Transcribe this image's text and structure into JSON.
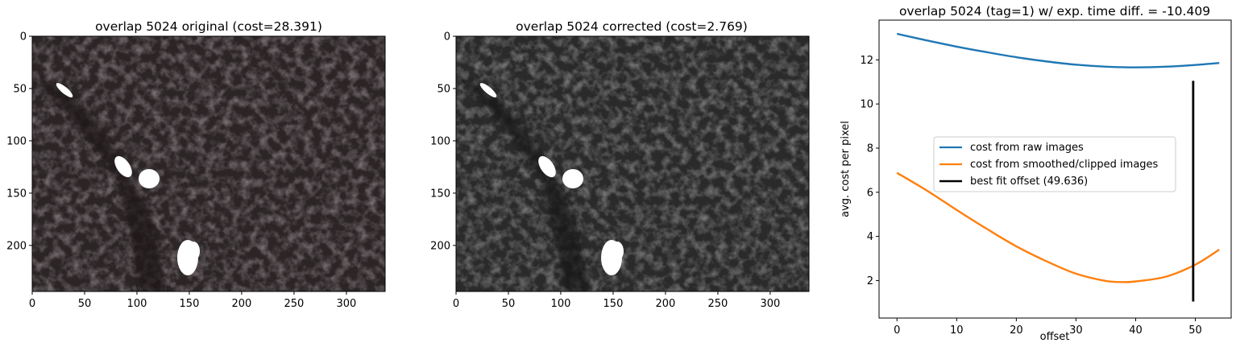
{
  "colors": {
    "raw": "#1f77b4",
    "smoothed": "#ff7f0e",
    "best_fit": "#000000",
    "image_bg": "#2b2526"
  },
  "chart_data": [
    {
      "type": "image",
      "title": "overlap 5024 original (cost=28.391)",
      "xticks": [
        "0",
        "50",
        "100",
        "150",
        "200",
        "250",
        "300"
      ],
      "yticks": [
        "0",
        "50",
        "100",
        "150",
        "200"
      ],
      "xlim": [
        0,
        337
      ],
      "ylim": [
        244,
        0
      ],
      "colormap": "pinkish-gray"
    },
    {
      "type": "image",
      "title": "overlap 5024 corrected (cost=2.769)",
      "xticks": [
        "0",
        "50",
        "100",
        "150",
        "200",
        "250",
        "300"
      ],
      "yticks": [
        "0",
        "50",
        "100",
        "150",
        "200"
      ],
      "xlim": [
        0,
        337
      ],
      "ylim": [
        244,
        0
      ],
      "colormap": "gray"
    },
    {
      "type": "line",
      "title": "overlap 5024 (tag=1) w/ exp. time diff. = -10.409",
      "xlabel": "offset",
      "ylabel": "avg. cost per pixel",
      "xlim": [
        -3,
        56
      ],
      "ylim": [
        0.3,
        13.8
      ],
      "xticks": [
        "0",
        "10",
        "20",
        "30",
        "40",
        "50"
      ],
      "yticks": [
        "2",
        "4",
        "6",
        "8",
        "10",
        "12"
      ],
      "legend_position": "center-left",
      "series": [
        {
          "name": "cost from raw images",
          "x": [
            0,
            5,
            10,
            15,
            20,
            25,
            30,
            35,
            40,
            45,
            50,
            54
          ],
          "y": [
            13.18,
            12.88,
            12.6,
            12.35,
            12.12,
            11.93,
            11.78,
            11.69,
            11.66,
            11.69,
            11.77,
            11.86
          ]
        },
        {
          "name": "cost from smoothed/clipped images",
          "x": [
            0,
            5,
            10,
            15,
            20,
            25,
            30,
            35,
            38,
            40,
            45,
            50,
            54
          ],
          "y": [
            6.88,
            6.08,
            5.2,
            4.35,
            3.55,
            2.88,
            2.31,
            1.98,
            1.93,
            1.96,
            2.17,
            2.72,
            3.4
          ]
        },
        {
          "name": "best fit offset (49.636)",
          "x": [
            49.636,
            49.636
          ],
          "y": [
            1.05,
            11.05
          ]
        }
      ]
    }
  ]
}
